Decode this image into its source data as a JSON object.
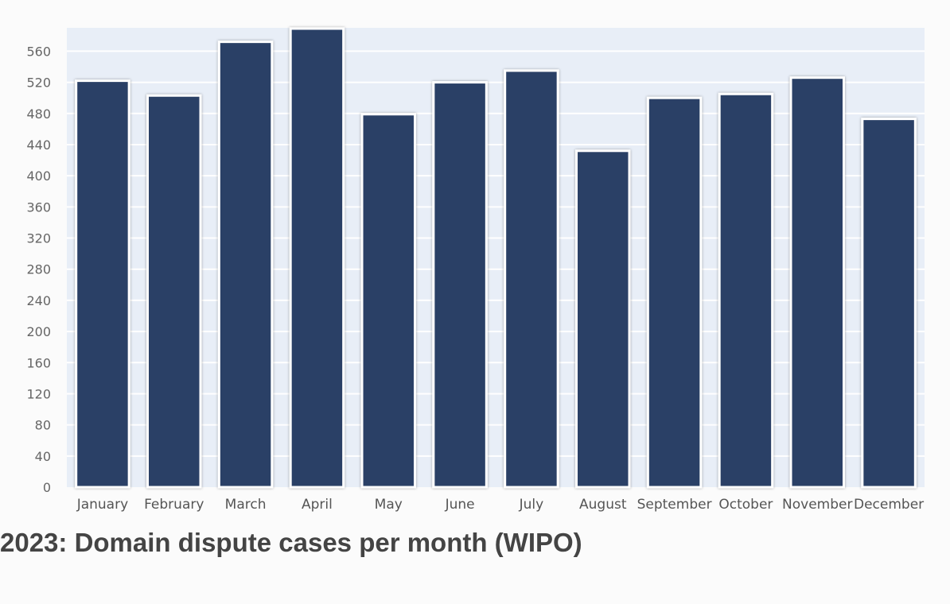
{
  "chart_data": {
    "type": "bar",
    "title": "2023: Domain dispute cases per month (WIPO)",
    "xlabel": "",
    "ylabel": "",
    "categories": [
      "January",
      "February",
      "March",
      "April",
      "May",
      "June",
      "July",
      "August",
      "September",
      "October",
      "November",
      "December"
    ],
    "values": [
      522,
      503,
      572,
      589,
      479,
      520,
      535,
      432,
      500,
      505,
      526,
      473
    ],
    "ylim": [
      0,
      590
    ],
    "yticks": [
      0,
      40,
      80,
      120,
      160,
      200,
      240,
      280,
      320,
      360,
      400,
      440,
      480,
      520,
      560
    ],
    "grid": true,
    "legend": "none",
    "colors": {
      "bar": "#2a4066",
      "bar_outline": "#ffffff",
      "plot_background": "#e8eef7",
      "gridline": "#ffffff"
    }
  }
}
